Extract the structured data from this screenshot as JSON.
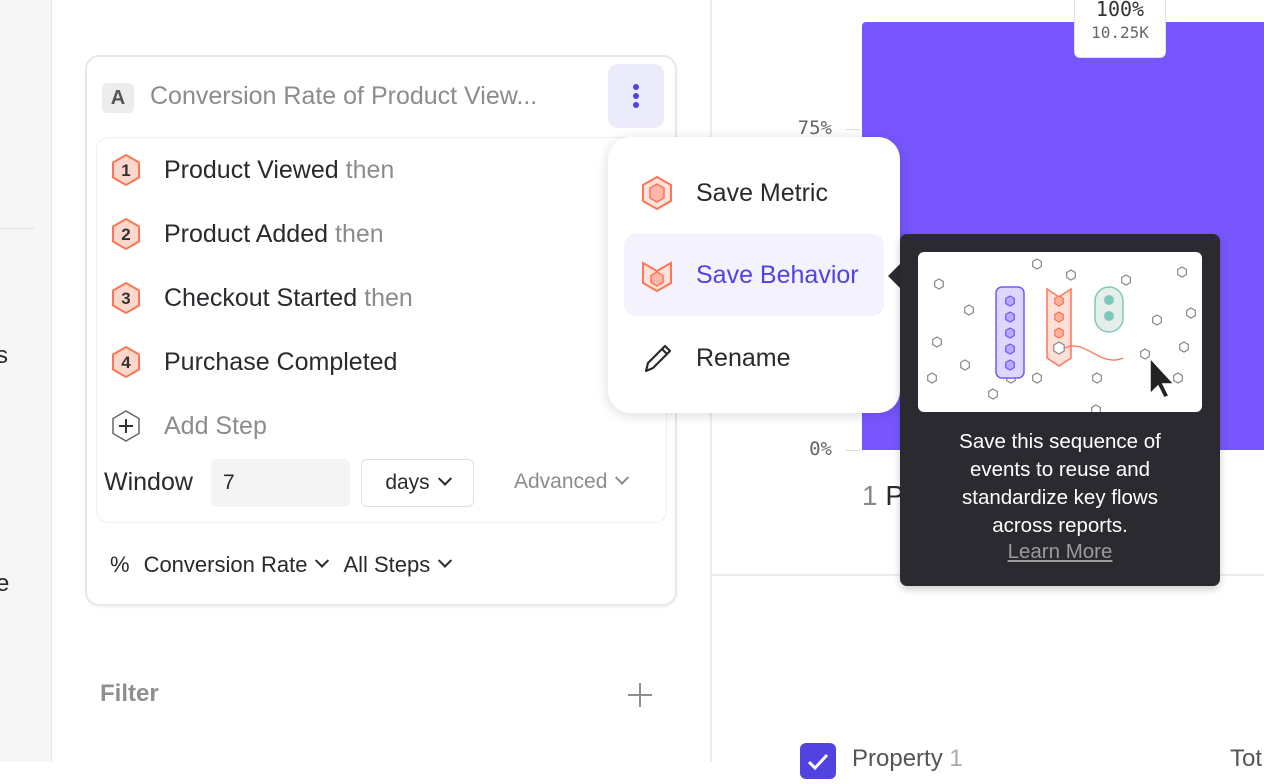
{
  "sidebar": {
    "partial_letters": [
      "s",
      "e"
    ]
  },
  "metric": {
    "badge": "A",
    "title": "Conversion Rate of Product View...",
    "steps": [
      {
        "number": "1",
        "name": "Product Viewed",
        "suffix": "then"
      },
      {
        "number": "2",
        "name": "Product Added",
        "suffix": "then"
      },
      {
        "number": "3",
        "name": "Checkout Started",
        "suffix": "then"
      },
      {
        "number": "4",
        "name": "Purchase Completed",
        "suffix": ""
      }
    ],
    "add_step": "Add Step",
    "window_label": "Window",
    "window_value": "7",
    "window_unit": "days",
    "advanced": "Advanced",
    "measure_symbol": "%",
    "measure": "Conversion Rate",
    "steps_scope": "All Steps"
  },
  "filter": {
    "label": "Filter"
  },
  "menu": {
    "items": [
      {
        "label": "Save Metric",
        "icon": "hexagon-metric-icon"
      },
      {
        "label": "Save Behavior",
        "icon": "behavior-badge-icon",
        "active": true
      },
      {
        "label": "Rename",
        "icon": "pencil-icon"
      }
    ]
  },
  "tooltip": {
    "lines": [
      "Save this sequence of",
      "events to reuse and",
      "standardize key flows",
      "across reports."
    ],
    "link": "Learn More"
  },
  "chart_data": {
    "type": "bar",
    "categories": [
      "1 P"
    ],
    "values": [
      100
    ],
    "data_labels": [
      {
        "percent": "100%",
        "count": "10.25K"
      }
    ],
    "yticks": [
      "75%",
      "0%"
    ],
    "ylim": [
      0,
      100
    ],
    "color": "#7856ff"
  },
  "table": {
    "column1": "Property",
    "column1_count": "1",
    "column2": "Tot"
  },
  "colors": {
    "accent": "#5243e0",
    "bar": "#7856ff",
    "step_icon": "#ff7557",
    "tooltip_bg": "#2b2a30"
  }
}
